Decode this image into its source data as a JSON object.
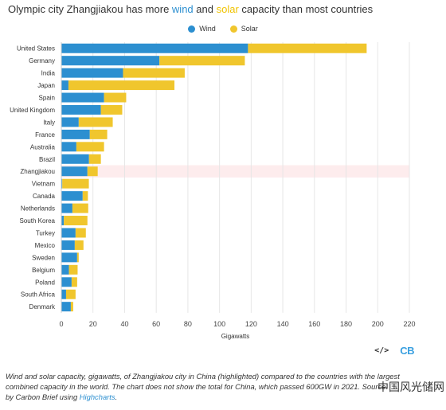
{
  "header": {
    "title_part1": "Olympic city Zhangjiakou has more ",
    "title_wind": "wind",
    "title_part2": " and ",
    "title_solar": "solar",
    "title_part3": " capacity than most countries"
  },
  "colors": {
    "wind": "#2c8fd0",
    "solar": "#f0c62d",
    "highlight": "#fdeced",
    "grid": "#e6e6e6"
  },
  "chart_data": {
    "type": "bar",
    "orientation": "horizontal",
    "stacked": true,
    "categories": [
      "United States",
      "Germany",
      "India",
      "Japan",
      "Spain",
      "United Kingdom",
      "Italy",
      "France",
      "Australia",
      "Brazil",
      "Zhangjiakou",
      "Vietnam",
      "Canada",
      "Netherlands",
      "South Korea",
      "Turkey",
      "Mexico",
      "Sweden",
      "Belgium",
      "Poland",
      "South Africa",
      "Denmark"
    ],
    "series": [
      {
        "name": "Wind",
        "values": [
          118,
          62,
          39,
          4.5,
          27,
          25,
          11,
          18,
          9.5,
          17.5,
          16.5,
          0.6,
          13.5,
          7,
          1.6,
          9,
          8.5,
          10,
          4.8,
          6.5,
          3,
          6
        ]
      },
      {
        "name": "Solar",
        "values": [
          75,
          54,
          39,
          67,
          14,
          13.5,
          21.5,
          11,
          17.5,
          7.5,
          6.5,
          16.8,
          3.3,
          10,
          14.9,
          6.5,
          5.5,
          1,
          5.5,
          3.5,
          6,
          1.5
        ]
      }
    ],
    "highlight_category": "Zhangjiakou",
    "xlabel": "Gigawatts",
    "ylabel": "",
    "xlim": [
      0,
      220
    ],
    "xticks": [
      0,
      20,
      40,
      60,
      80,
      100,
      120,
      140,
      160,
      180,
      200,
      220
    ],
    "grid": true,
    "legend_position": "top-center"
  },
  "toolbar": {
    "embed_label": "</>",
    "logo_label": "CB"
  },
  "caption": {
    "text": "Wind and solar capacity, gigawatts, of Zhangjiakou city in China (highlighted) compared to the countries with the largest combined capacity in the world. The chart does not show the total for China, which passed 600GW in 2021. Source: ",
    "text2": "by Carbon Brief using ",
    "link": "Highcharts",
    "end": "."
  },
  "watermark": "中国风光储网"
}
